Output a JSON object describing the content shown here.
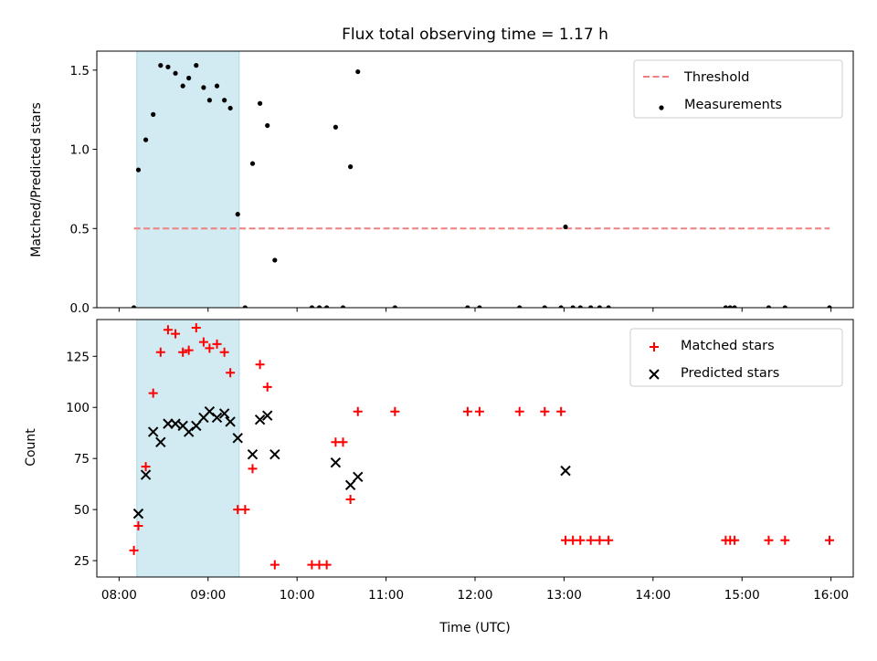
{
  "title": "Flux total observing time = 1.17 h",
  "xlabel": "Time (UTC)",
  "chart_data": [
    {
      "type": "scatter",
      "ylabel": "Matched/Predicted stars",
      "xlim": [
        "07:45",
        "16:15"
      ],
      "ylim": [
        0,
        1.62
      ],
      "yticks": [
        "0.0",
        "0.5",
        "1.0",
        "1.5"
      ],
      "ytick_values": [
        0,
        0.5,
        1.0,
        1.5
      ],
      "shaded_interval": [
        "08:12",
        "09:21"
      ],
      "shade_color": "#add8e6",
      "threshold": {
        "name": "Threshold",
        "value": 0.5,
        "x_range": [
          "08:10",
          "15:59"
        ],
        "color": "#f08080"
      },
      "series": [
        {
          "name": "Measurements",
          "color": "#000000",
          "points": [
            [
              "08:10",
              0.0
            ],
            [
              "08:13",
              0.87
            ],
            [
              "08:18",
              1.06
            ],
            [
              "08:23",
              1.22
            ],
            [
              "08:28",
              1.53
            ],
            [
              "08:33",
              1.52
            ],
            [
              "08:38",
              1.48
            ],
            [
              "08:43",
              1.4
            ],
            [
              "08:47",
              1.45
            ],
            [
              "08:52",
              1.53
            ],
            [
              "08:57",
              1.39
            ],
            [
              "09:01",
              1.31
            ],
            [
              "09:06",
              1.4
            ],
            [
              "09:11",
              1.31
            ],
            [
              "09:15",
              1.26
            ],
            [
              "09:20",
              0.59
            ],
            [
              "09:25",
              0.0
            ],
            [
              "09:30",
              0.91
            ],
            [
              "09:35",
              1.29
            ],
            [
              "09:40",
              1.15
            ],
            [
              "09:45",
              0.3
            ],
            [
              "10:10",
              0.0
            ],
            [
              "10:15",
              0.0
            ],
            [
              "10:20",
              0.0
            ],
            [
              "10:26",
              1.14
            ],
            [
              "10:31",
              0.0
            ],
            [
              "10:36",
              0.89
            ],
            [
              "10:41",
              1.49
            ],
            [
              "11:06",
              0.0
            ],
            [
              "11:55",
              0.0
            ],
            [
              "12:03",
              0.0
            ],
            [
              "12:30",
              0.0
            ],
            [
              "12:47",
              0.0
            ],
            [
              "12:58",
              0.0
            ],
            [
              "13:01",
              0.51
            ],
            [
              "13:06",
              0.0
            ],
            [
              "13:11",
              0.0
            ],
            [
              "13:18",
              0.0
            ],
            [
              "13:24",
              0.0
            ],
            [
              "13:30",
              0.0
            ],
            [
              "14:49",
              0.0
            ],
            [
              "14:52",
              0.0
            ],
            [
              "14:55",
              0.0
            ],
            [
              "15:18",
              0.0
            ],
            [
              "15:29",
              0.0
            ],
            [
              "15:59",
              0.0
            ]
          ]
        }
      ],
      "legend": {
        "position": "top-right",
        "entries": [
          "Threshold",
          "Measurements"
        ]
      }
    },
    {
      "type": "scatter",
      "ylabel": "Count",
      "xlim": [
        "07:45",
        "16:15"
      ],
      "ylim": [
        17,
        143
      ],
      "yticks": [
        "25",
        "50",
        "75",
        "100",
        "125"
      ],
      "ytick_values": [
        25,
        50,
        75,
        100,
        125
      ],
      "shaded_interval": [
        "08:12",
        "09:21"
      ],
      "shade_color": "#add8e6",
      "series": [
        {
          "name": "Matched stars",
          "marker": "plus",
          "color": "#ff0000",
          "points": [
            [
              "08:10",
              30
            ],
            [
              "08:13",
              42
            ],
            [
              "08:18",
              71
            ],
            [
              "08:23",
              107
            ],
            [
              "08:28",
              127
            ],
            [
              "08:33",
              138
            ],
            [
              "08:38",
              136
            ],
            [
              "08:43",
              127
            ],
            [
              "08:47",
              128
            ],
            [
              "08:52",
              139
            ],
            [
              "08:57",
              132
            ],
            [
              "09:01",
              129
            ],
            [
              "09:06",
              131
            ],
            [
              "09:11",
              127
            ],
            [
              "09:15",
              117
            ],
            [
              "09:20",
              50
            ],
            [
              "09:25",
              50
            ],
            [
              "09:30",
              70
            ],
            [
              "09:35",
              121
            ],
            [
              "09:40",
              110
            ],
            [
              "09:45",
              23
            ],
            [
              "10:10",
              23
            ],
            [
              "10:15",
              23
            ],
            [
              "10:20",
              23
            ],
            [
              "10:26",
              83
            ],
            [
              "10:31",
              83
            ],
            [
              "10:36",
              55
            ],
            [
              "10:41",
              98
            ],
            [
              "11:06",
              98
            ],
            [
              "11:55",
              98
            ],
            [
              "12:03",
              98
            ],
            [
              "12:30",
              98
            ],
            [
              "12:47",
              98
            ],
            [
              "12:58",
              98
            ],
            [
              "13:01",
              35
            ],
            [
              "13:06",
              35
            ],
            [
              "13:11",
              35
            ],
            [
              "13:18",
              35
            ],
            [
              "13:24",
              35
            ],
            [
              "13:30",
              35
            ],
            [
              "14:49",
              35
            ],
            [
              "14:52",
              35
            ],
            [
              "14:55",
              35
            ],
            [
              "15:18",
              35
            ],
            [
              "15:29",
              35
            ],
            [
              "15:59",
              35
            ]
          ]
        },
        {
          "name": "Predicted stars",
          "marker": "x",
          "color": "#000000",
          "points": [
            [
              "08:13",
              48
            ],
            [
              "08:18",
              67
            ],
            [
              "08:23",
              88
            ],
            [
              "08:28",
              83
            ],
            [
              "08:33",
              92
            ],
            [
              "08:38",
              92
            ],
            [
              "08:43",
              91
            ],
            [
              "08:47",
              88
            ],
            [
              "08:52",
              91
            ],
            [
              "08:57",
              95
            ],
            [
              "09:01",
              98
            ],
            [
              "09:06",
              95
            ],
            [
              "09:11",
              97
            ],
            [
              "09:15",
              93
            ],
            [
              "09:20",
              85
            ],
            [
              "09:30",
              77
            ],
            [
              "09:35",
              94
            ],
            [
              "09:40",
              96
            ],
            [
              "09:45",
              77
            ],
            [
              "10:26",
              73
            ],
            [
              "10:36",
              62
            ],
            [
              "10:41",
              66
            ],
            [
              "13:01",
              69
            ]
          ]
        }
      ],
      "legend": {
        "position": "top-right",
        "entries": [
          "Matched stars",
          "Predicted stars"
        ]
      }
    }
  ],
  "xticks": [
    "08:00",
    "09:00",
    "10:00",
    "11:00",
    "12:00",
    "13:00",
    "14:00",
    "15:00",
    "16:00"
  ]
}
